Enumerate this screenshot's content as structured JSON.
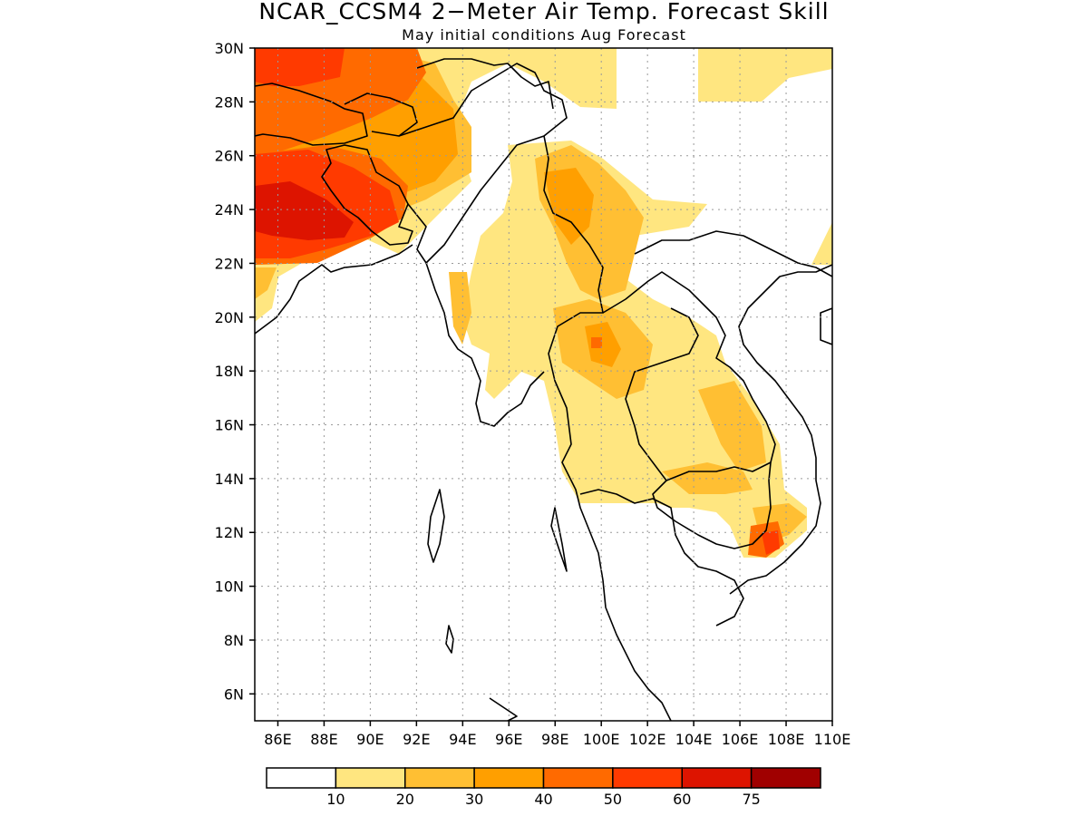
{
  "title": "NCAR_CCSM4 2−Meter Air Temp. Forecast Skill",
  "subtitle": "May initial conditions  Aug Forecast",
  "map": {
    "lon_range": [
      85,
      110
    ],
    "lat_range": [
      5,
      30
    ],
    "lon_ticks": [
      "86E",
      "88E",
      "90E",
      "92E",
      "94E",
      "96E",
      "98E",
      "100E",
      "102E",
      "104E",
      "106E",
      "108E",
      "110E"
    ],
    "lon_tick_values": [
      86,
      88,
      90,
      92,
      94,
      96,
      98,
      100,
      102,
      104,
      106,
      108,
      110
    ],
    "lat_ticks": [
      "6N",
      "8N",
      "10N",
      "12N",
      "14N",
      "16N",
      "18N",
      "20N",
      "22N",
      "24N",
      "26N",
      "28N",
      "30N"
    ],
    "lat_tick_values": [
      6,
      8,
      10,
      12,
      14,
      16,
      18,
      20,
      22,
      24,
      26,
      28,
      30
    ],
    "grid": "dotted",
    "land_outline": "black coastlines and national borders",
    "fill_regions": [
      {
        "area": "Nepal / northern India",
        "level": "40-50"
      },
      {
        "area": "Bihar / Bangladesh",
        "level": "50-60"
      },
      {
        "area": "central Bangladesh",
        "level": "60-75"
      },
      {
        "area": "Bhutan / Assam",
        "level": "30-40"
      },
      {
        "area": "northern Myanmar / Yunnan",
        "level": "20-30"
      },
      {
        "area": "northern Thailand / Laos",
        "level": "20-30"
      },
      {
        "area": "central Thailand / Cambodia",
        "level": "10-20"
      },
      {
        "area": "southern Vietnam",
        "level": "50-60"
      }
    ]
  },
  "colorbar": {
    "colors": [
      "#ffffff",
      "#ffe680",
      "#ffbf33",
      "#ff9f00",
      "#ff6a00",
      "#ff3a00",
      "#dd1400",
      "#a00000"
    ],
    "labels": [
      "10",
      "20",
      "30",
      "40",
      "50",
      "60",
      "75"
    ]
  }
}
